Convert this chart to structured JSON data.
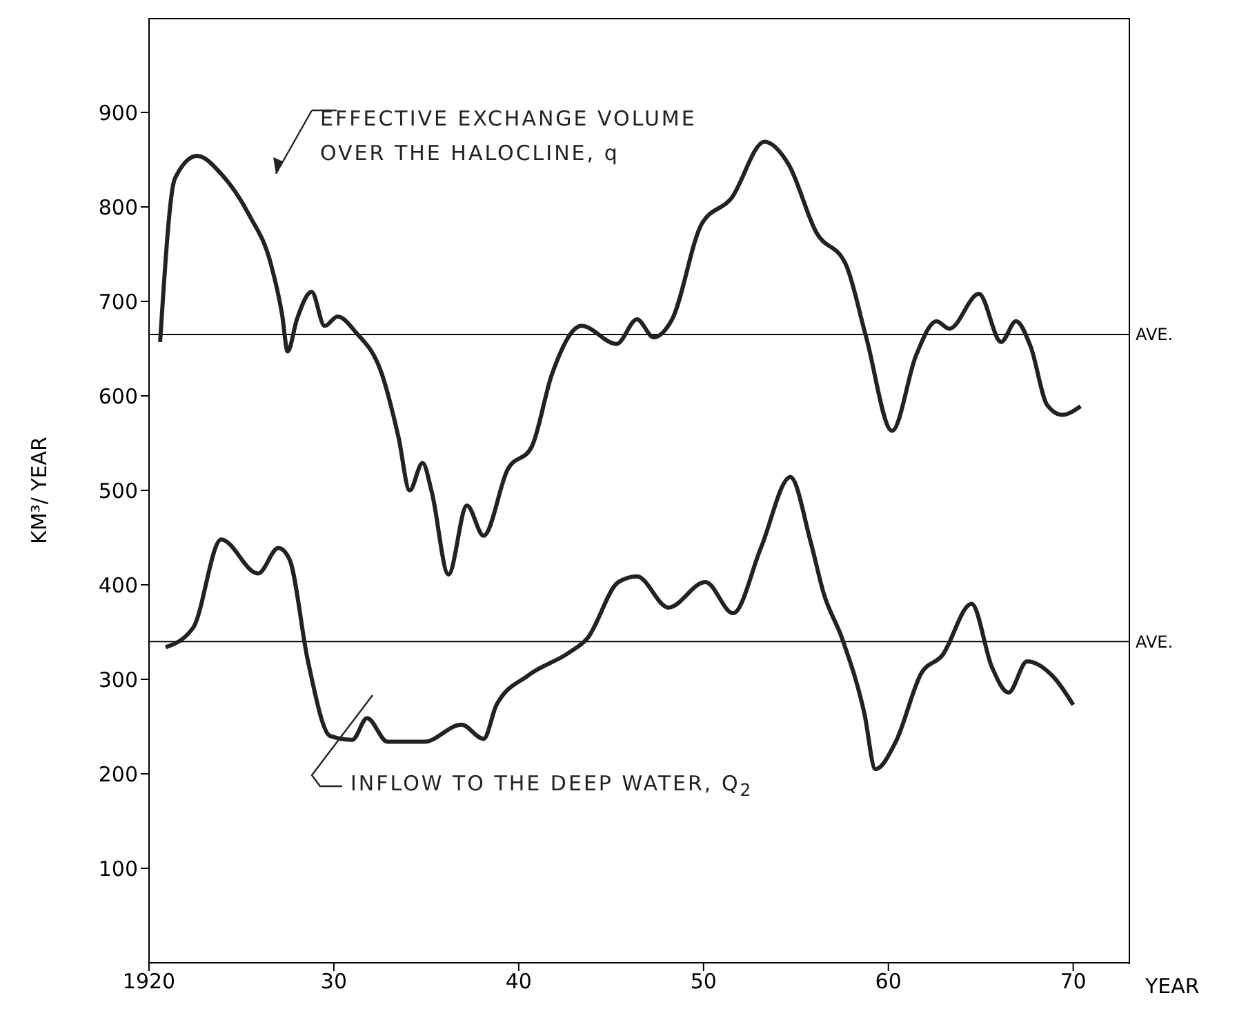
{
  "chart_data": {
    "type": "line",
    "ylabel": "KM³/ YEAR",
    "xlabel": "YEAR",
    "xlim": [
      1920,
      1973
    ],
    "xticks": [
      {
        "value": 1920,
        "label": "1920"
      },
      {
        "value": 1930,
        "label": "30"
      },
      {
        "value": 1940,
        "label": "40"
      },
      {
        "value": 1950,
        "label": "50"
      },
      {
        "value": 1960,
        "label": "60"
      },
      {
        "value": 1970,
        "label": "70"
      }
    ],
    "ylim": [
      0,
      1000
    ],
    "yticks": [
      100,
      200,
      300,
      400,
      500,
      600,
      700,
      800,
      900
    ],
    "ref_lines": [
      {
        "axis": "y",
        "value": 665,
        "label": "AVE.",
        "color": "#000000"
      },
      {
        "axis": "y",
        "value": 340,
        "label": "AVE.",
        "color": "#000000"
      }
    ],
    "series": [
      {
        "name": "EFFECTIVE EXCHANGE VOLUME\nOVER THE HALOCLINE, q",
        "color": "#222222",
        "x": [
          1920.6,
          1921.4,
          1922.6,
          1923.9,
          1925.4,
          1926.6,
          1927.2,
          1927.5,
          1928.0,
          1928.8,
          1929.5,
          1930.2,
          1931.2,
          1932.6,
          1933.5,
          1934.1,
          1934.8,
          1935.3,
          1936.2,
          1937.2,
          1938.1,
          1939.4,
          1940.7,
          1941.8,
          1943.4,
          1945.3,
          1946.4,
          1947.3,
          1948.3,
          1949.9,
          1951.5,
          1953.3,
          1954.6,
          1956.1,
          1957.7,
          1958.8,
          1960.2,
          1961.5,
          1962.6,
          1963.3,
          1964.9,
          1966.1,
          1966.9,
          1967.7,
          1968.6,
          1969.4,
          1970.4
        ],
        "values": [
          657,
          830,
          854,
          835,
          792,
          739,
          686,
          647,
          681,
          710,
          674,
          684,
          667,
          623,
          556,
          500,
          529,
          498,
          411,
          484,
          452,
          522,
          546,
          623,
          674,
          655,
          681,
          662,
          681,
          782,
          809,
          869,
          845,
          773,
          739,
          662,
          563,
          643,
          679,
          671,
          708,
          657,
          679,
          652,
          590,
          580,
          589
        ]
      },
      {
        "name": "INFLOW TO THE DEEP WATER, Q$_{2}$",
        "color": "#222222",
        "x": [
          1920.9,
          1922.4,
          1923.9,
          1925.9,
          1927.0,
          1927.6,
          1928.6,
          1929.8,
          1931.0,
          1931.8,
          1932.9,
          1934.9,
          1936.9,
          1938.1,
          1938.8,
          1940.5,
          1942.7,
          1943.7,
          1945.4,
          1946.4,
          1948.1,
          1950.1,
          1951.6,
          1953.1,
          1954.7,
          1955.8,
          1956.5,
          1957.5,
          1958.7,
          1959.3,
          1960.4,
          1961.8,
          1962.9,
          1964.5,
          1965.6,
          1966.5,
          1967.5,
          1969.0,
          1970.0
        ],
        "values": [
          334,
          355,
          448,
          412,
          439,
          427,
          319,
          240,
          236,
          259,
          234,
          234,
          252,
          237,
          273,
          304,
          328,
          343,
          403,
          409,
          376,
          403,
          370,
          439,
          514,
          445,
          391,
          343,
          264,
          205,
          234,
          307,
          325,
          380,
          313,
          286,
          319,
          301,
          273
        ]
      }
    ]
  }
}
